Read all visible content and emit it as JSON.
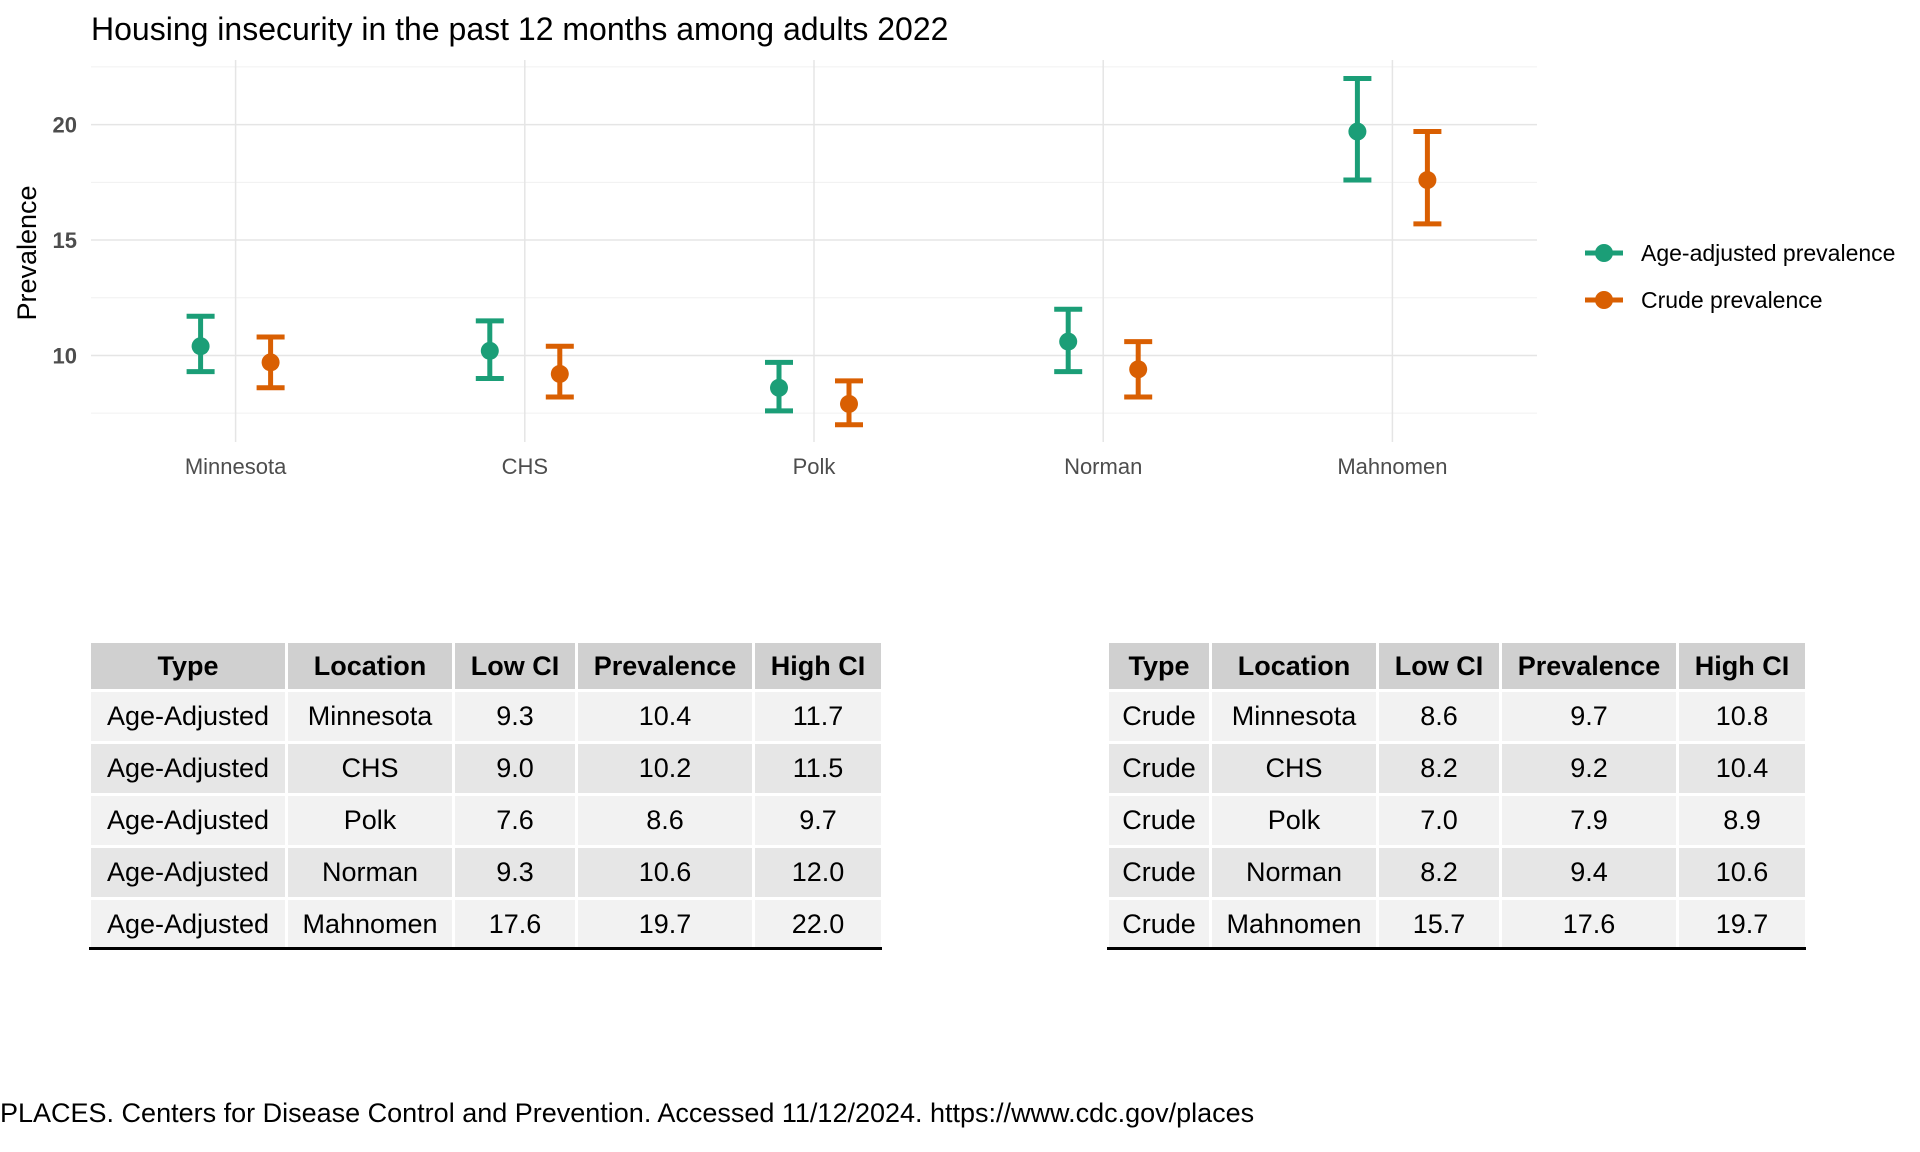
{
  "chart_data": {
    "type": "errorbar",
    "title": "Housing insecurity in the past 12 months among adults 2022",
    "xlabel": "",
    "ylabel": "Prevalence",
    "categories": [
      "Minnesota",
      "CHS",
      "Polk",
      "Norman",
      "Mahnomen"
    ],
    "yticks": [
      10,
      15,
      20
    ],
    "ylim": [
      6.9,
      22.8
    ],
    "grid": true,
    "legend_position": "right",
    "series": [
      {
        "name": "Age-adjusted prevalence",
        "color": "#1b9e77",
        "values": [
          10.4,
          10.2,
          8.6,
          10.6,
          19.7
        ],
        "low": [
          9.3,
          9.0,
          7.6,
          9.3,
          17.6
        ],
        "high": [
          11.7,
          11.5,
          9.7,
          12.0,
          22.0
        ]
      },
      {
        "name": "Crude prevalence",
        "color": "#d95f02",
        "values": [
          9.7,
          9.2,
          7.9,
          9.4,
          17.6
        ],
        "low": [
          8.6,
          8.2,
          7.0,
          8.2,
          15.7
        ],
        "high": [
          10.8,
          10.4,
          8.9,
          10.6,
          19.7
        ]
      }
    ]
  },
  "tables": {
    "headers": [
      "Type",
      "Location",
      "Low CI",
      "Prevalence",
      "High CI"
    ],
    "age_adjusted": [
      [
        "Age-Adjusted",
        "Minnesota",
        "9.3",
        "10.4",
        "11.7"
      ],
      [
        "Age-Adjusted",
        "CHS",
        "9.0",
        "10.2",
        "11.5"
      ],
      [
        "Age-Adjusted",
        "Polk",
        "7.6",
        "8.6",
        "9.7"
      ],
      [
        "Age-Adjusted",
        "Norman",
        "9.3",
        "10.6",
        "12.0"
      ],
      [
        "Age-Adjusted",
        "Mahnomen",
        "17.6",
        "19.7",
        "22.0"
      ]
    ],
    "crude": [
      [
        "Crude",
        "Minnesota",
        "8.6",
        "9.7",
        "10.8"
      ],
      [
        "Crude",
        "CHS",
        "8.2",
        "9.2",
        "10.4"
      ],
      [
        "Crude",
        "Polk",
        "7.0",
        "7.9",
        "8.9"
      ],
      [
        "Crude",
        "Norman",
        "8.2",
        "9.4",
        "10.6"
      ],
      [
        "Crude",
        "Mahnomen",
        "15.7",
        "17.6",
        "19.7"
      ]
    ]
  },
  "caption": "PLACES. Centers for Disease Control and Prevention. Accessed 11/12/2024. https://www.cdc.gov/places"
}
